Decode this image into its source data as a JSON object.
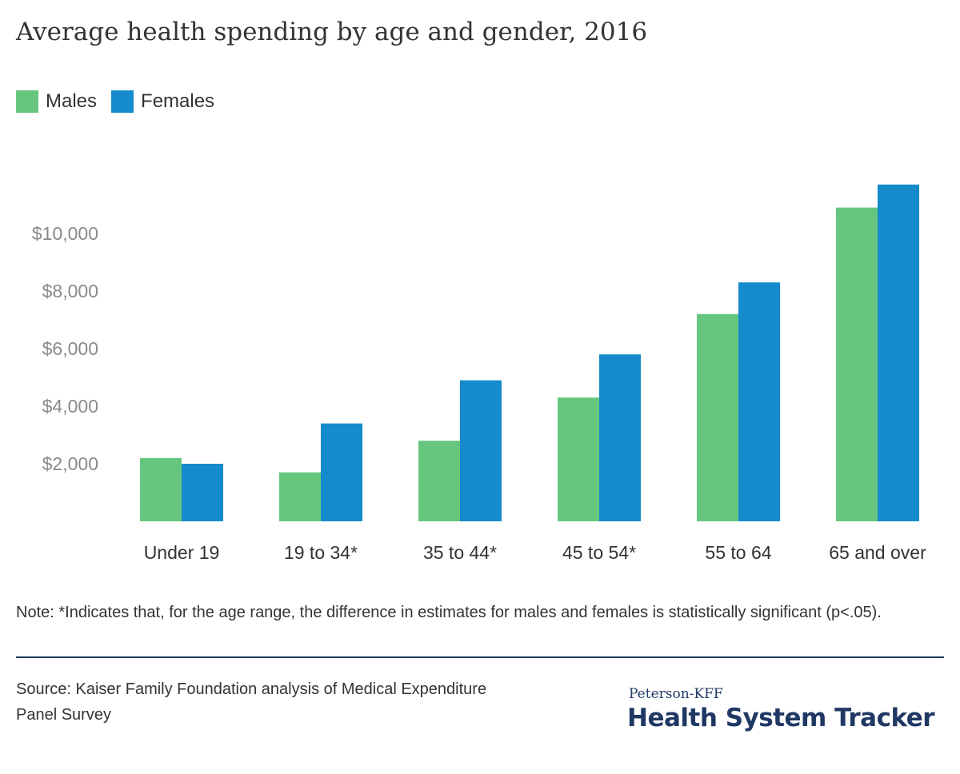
{
  "chart_data": {
    "type": "bar",
    "title": "Average health spending by age and gender, 2016",
    "categories": [
      "Under 19",
      "19 to 34*",
      "35 to 44*",
      "45 to 54*",
      "55 to 64",
      "65 and over"
    ],
    "series": [
      {
        "name": "Males",
        "color": "#66c67e",
        "values": [
          2200,
          1700,
          2800,
          4300,
          7200,
          10900
        ]
      },
      {
        "name": "Females",
        "color": "#168bcc",
        "values": [
          2000,
          3400,
          4900,
          5800,
          8300,
          11700
        ]
      }
    ],
    "y_ticks": [
      {
        "value": 2000,
        "label": "$2,000"
      },
      {
        "value": 4000,
        "label": "$4,000"
      },
      {
        "value": 6000,
        "label": "$6,000"
      },
      {
        "value": 8000,
        "label": "$8,000"
      },
      {
        "value": 10000,
        "label": "$10,000"
      }
    ],
    "ylim": [
      0,
      12000
    ],
    "grid": false,
    "legend_position": "top-left"
  },
  "note": "Note: *Indicates that, for the age range, the difference in estimates for males and females is statistically significant (p<.05).",
  "source": "Source: Kaiser Family Foundation analysis of Medical Expenditure Panel Survey",
  "brand": {
    "sub": "Peterson-KFF",
    "main": "Health System Tracker",
    "color": "#1f3864"
  }
}
